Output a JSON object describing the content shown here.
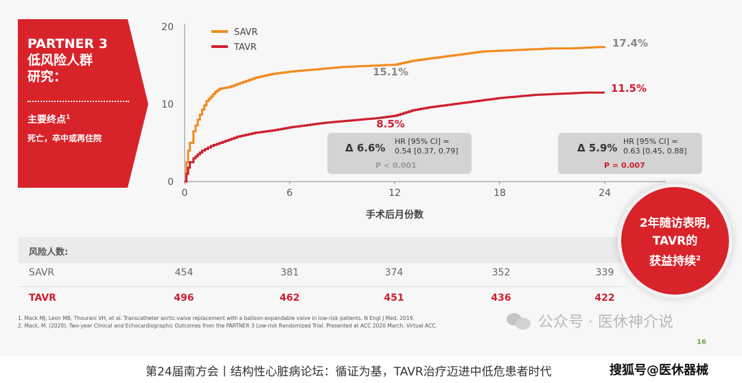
{
  "callout": {
    "title_line1": "PARTNER 3",
    "title_line2": "低风险人群",
    "title_line3": "研究：",
    "endpoint_label": "主要终点",
    "endpoint_sup": "1",
    "endpoint_detail": "死亡，卒中或再住院"
  },
  "chart_data": {
    "type": "line",
    "xlabel": "手术后月份数",
    "ylabel": "",
    "x_ticks": [
      0,
      6,
      12,
      18,
      24
    ],
    "y_ticks": [
      0,
      10,
      20
    ],
    "xlim": [
      0,
      24
    ],
    "ylim": [
      0,
      20
    ],
    "legend_position": "top-left",
    "series": [
      {
        "name": "SAVR",
        "color": "#f28a1e",
        "x": [
          0,
          0.1,
          0.2,
          0.3,
          0.5,
          0.75,
          1.0,
          1.25,
          1.5,
          1.75,
          2.0,
          2.5,
          3,
          4,
          5,
          6,
          7,
          8,
          9,
          10,
          11,
          12,
          13,
          14,
          15,
          16,
          17,
          18,
          19,
          20,
          21,
          22,
          23,
          24
        ],
        "y": [
          0,
          2.5,
          4.0,
          5.0,
          6.5,
          8.0,
          9.3,
          10.4,
          11.0,
          11.6,
          12.0,
          12.2,
          12.6,
          13.4,
          13.9,
          14.2,
          14.4,
          14.6,
          14.8,
          14.9,
          15.0,
          15.1,
          15.6,
          15.9,
          16.2,
          16.5,
          16.8,
          16.9,
          17.0,
          17.1,
          17.2,
          17.2,
          17.3,
          17.4
        ]
      },
      {
        "name": "TAVR",
        "color": "#cc1f2e",
        "x": [
          0,
          0.1,
          0.2,
          0.3,
          0.5,
          0.75,
          1.0,
          1.5,
          2.0,
          2.5,
          3,
          4,
          5,
          6,
          7,
          8,
          9,
          10,
          11,
          12,
          13,
          14,
          15,
          16,
          17,
          18,
          19,
          20,
          21,
          22,
          23,
          24
        ],
        "y": [
          0,
          1.0,
          1.8,
          2.5,
          3.0,
          3.5,
          4.0,
          4.6,
          5.0,
          5.4,
          5.8,
          6.3,
          6.6,
          7.0,
          7.3,
          7.6,
          7.8,
          8.0,
          8.2,
          8.5,
          9.2,
          9.6,
          9.9,
          10.2,
          10.5,
          10.8,
          11.0,
          11.2,
          11.3,
          11.4,
          11.5,
          11.5
        ]
      }
    ],
    "annotations": [
      {
        "text": "15.1%",
        "x": 12,
        "y": 15.1,
        "color": "#888888"
      },
      {
        "text": "8.5%",
        "x": 12,
        "y": 8.5,
        "color": "#cc1f2e"
      },
      {
        "text": "17.4%",
        "x": 24,
        "y": 17.4,
        "color": "#888888"
      },
      {
        "text": "11.5%",
        "x": 24,
        "y": 11.5,
        "color": "#cc1f2e"
      }
    ]
  },
  "hr_boxes": [
    {
      "delta": "Δ 6.6%",
      "hr_line1": "HR [95% CI] =",
      "hr_line2": "0.54 [0.37, 0.79]",
      "p": "P < 0.001",
      "p_color": "#999999"
    },
    {
      "delta": "Δ 5.9%",
      "hr_line1": "HR [95% CI] =",
      "hr_line2": "0.63 [0.45, 0.88]",
      "p": "P = 0.007",
      "p_color": "#cc1f2e"
    }
  ],
  "risk_table": {
    "label": "风险人数:",
    "rows": [
      {
        "name": "SAVR",
        "values": [
          "454",
          "381",
          "374",
          "352",
          "339"
        ]
      },
      {
        "name": "TAVR",
        "values": [
          "496",
          "462",
          "451",
          "436",
          "422"
        ]
      }
    ]
  },
  "circle": {
    "line1": "2年随访表明,",
    "line2": "TAVR的",
    "line3": "获益持续",
    "sup": "2"
  },
  "references": [
    "1. Mack MJ, Leon MB, Thourani VH, et al. Transcatheter aortic-valve replacement with a balloon-expandable valve in low-risk patients. N Engl J Med. 2019.",
    "2. Mack, M.  (2020).  Two-year Clinical and Echocardiographic Outcomes from the PARTNER 3 Low-risk Randomized Trial. Presented at ACC 2020 March. Virtual ACC."
  ],
  "page_number": "16",
  "watermark": "公众号 · 医休神介说",
  "bottom_caption": "第24届南方会丨结构性心脏病论坛：循证为基，TAVR治疗迈进中低危患者时代",
  "bottom_brand": "搜狐号@医休器械",
  "colors": {
    "accent_red": "#cc1f2e",
    "savr_orange": "#f28a1e",
    "callout_red": "#d8232a"
  }
}
